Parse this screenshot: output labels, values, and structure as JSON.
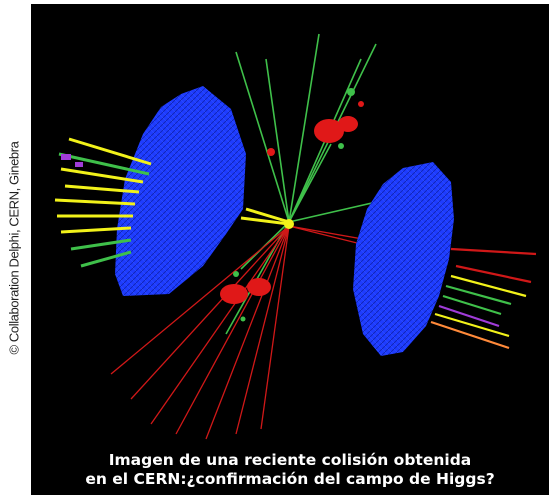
{
  "credit": "© Collaboration Delphi, CERN, Ginebra",
  "caption": {
    "line1": "Imagen de una reciente colisión obtenida",
    "line2": "en el CERN:¿confirmación del campo de Higgs?"
  },
  "colors": {
    "background": "#000000",
    "detector": "#1e3cff",
    "track_green": "#3fc04a",
    "track_red": "#d01818",
    "track_yellow": "#f2f21a",
    "caption_text": "#ffffff"
  }
}
